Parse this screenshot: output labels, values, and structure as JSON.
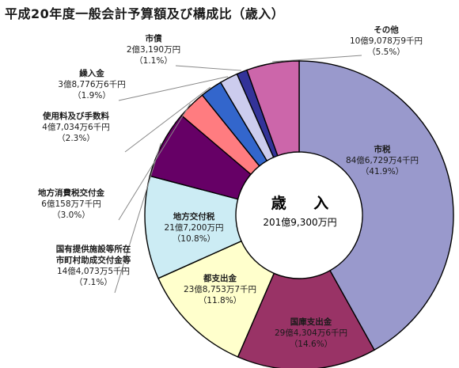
{
  "chart_data": {
    "type": "pie",
    "title": "平成20年度一般会計予算額及び構成比（歳入）",
    "center_title": "歳 入",
    "center_amount": "201億9,300万円",
    "slices": [
      {
        "name": "市税",
        "amount": "84億6,729万4千円",
        "percent_label": "（41.9%）",
        "value": 41.9,
        "color": "#9999cc"
      },
      {
        "name": "国庫支出金",
        "amount": "29億4,304万6千円",
        "percent_label": "（14.6%）",
        "value": 14.6,
        "color": "#993366"
      },
      {
        "name": "都支出金",
        "amount": "23億8,753万7千円",
        "percent_label": "（11.8%）",
        "value": 11.8,
        "color": "#ffffcc"
      },
      {
        "name": "地方交付税",
        "amount": "21億7,200万円",
        "percent_label": "（10.8%）",
        "value": 10.8,
        "color": "#ccecf4"
      },
      {
        "name": "国有提供施設等所在市町村助成交付金等",
        "name_lines": [
          "国有提供施設等所在",
          "市町村助成交付金等"
        ],
        "amount": "14億4,073万5千円",
        "percent_label": "（7.1%）",
        "value": 7.1,
        "color": "#660066"
      },
      {
        "name": "地方消費税交付金",
        "amount": "6億158万7千円",
        "percent_label": "（3.0%）",
        "value": 3.0,
        "color": "#ff7c80"
      },
      {
        "name": "使用料及び手数料",
        "amount": "4億7,034万6千円",
        "percent_label": "（2.3%）",
        "value": 2.3,
        "color": "#3366cc"
      },
      {
        "name": "繰入金",
        "amount": "3億8,776万6千円",
        "percent_label": "（1.9%）",
        "value": 1.9,
        "color": "#ccccee"
      },
      {
        "name": "市債",
        "amount": "2億3,190万円",
        "percent_label": "（1.1%）",
        "value": 1.1,
        "color": "#333399"
      },
      {
        "name": "その他",
        "amount": "10億9,078万9千円",
        "percent_label": "（5.5%）",
        "value": 5.5,
        "color": "#cc66aa"
      }
    ]
  }
}
